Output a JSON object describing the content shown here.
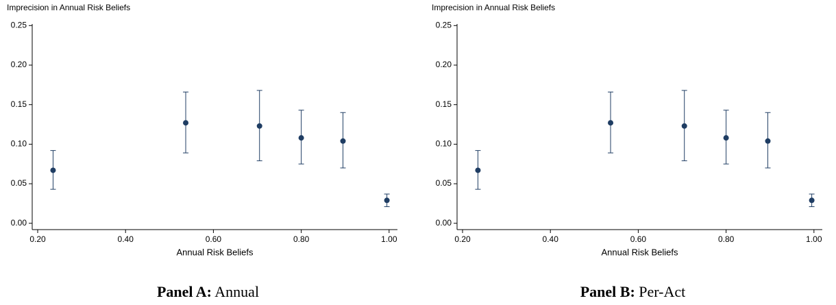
{
  "chart_data": [
    {
      "type": "scatter",
      "panel_label": "Panel A:",
      "panel_name": "Annual",
      "y_label": "Imprecision in Annual Risk Beliefs",
      "x_label": "Annual Risk Beliefs",
      "color": "#1f3d63",
      "x": [
        0.235,
        0.537,
        0.705,
        0.8,
        0.895,
        0.995
      ],
      "values": [
        0.067,
        0.127,
        0.123,
        0.108,
        0.104,
        0.029
      ],
      "lower": [
        0.043,
        0.089,
        0.079,
        0.075,
        0.07,
        0.021
      ],
      "upper": [
        0.092,
        0.166,
        0.168,
        0.143,
        0.14,
        0.037
      ],
      "xlim": [
        0.1875,
        1.019
      ],
      "ylim": [
        -0.008,
        0.252
      ],
      "xticks": [
        {
          "value": 0.2,
          "label": "0.20"
        },
        {
          "value": 0.4,
          "label": "0.40"
        },
        {
          "value": 0.6,
          "label": "0.60"
        },
        {
          "value": 0.8,
          "label": "0.80"
        },
        {
          "value": 1.0,
          "label": "1.00"
        }
      ],
      "yticks": [
        {
          "value": 0,
          "label": "0.00"
        },
        {
          "value": 0.05,
          "label": "0.05"
        },
        {
          "value": 0.1,
          "label": "0.10"
        },
        {
          "value": 0.15,
          "label": "0.15"
        },
        {
          "value": 0.2,
          "label": "0.20"
        },
        {
          "value": 0.25,
          "label": "0.25"
        }
      ],
      "grid": false
    },
    {
      "type": "scatter",
      "panel_label": "Panel B:",
      "panel_name": "Per-Act",
      "y_label": "Imprecision in Annual Risk Beliefs",
      "x_label": "Annual Risk Beliefs",
      "color": "#1f3d63",
      "x": [
        0.235,
        0.537,
        0.705,
        0.8,
        0.895,
        0.995
      ],
      "values": [
        0.067,
        0.127,
        0.123,
        0.108,
        0.104,
        0.029
      ],
      "lower": [
        0.043,
        0.089,
        0.079,
        0.075,
        0.07,
        0.021
      ],
      "upper": [
        0.092,
        0.166,
        0.168,
        0.143,
        0.14,
        0.037
      ],
      "xlim": [
        0.1875,
        1.019
      ],
      "ylim": [
        -0.008,
        0.252
      ],
      "xticks": [
        {
          "value": 0.2,
          "label": "0.20"
        },
        {
          "value": 0.4,
          "label": "0.40"
        },
        {
          "value": 0.6,
          "label": "0.60"
        },
        {
          "value": 0.8,
          "label": "0.80"
        },
        {
          "value": 1.0,
          "label": "1.00"
        }
      ],
      "yticks": [
        {
          "value": 0,
          "label": "0.00"
        },
        {
          "value": 0.05,
          "label": "0.05"
        },
        {
          "value": 0.1,
          "label": "0.10"
        },
        {
          "value": 0.15,
          "label": "0.15"
        },
        {
          "value": 0.2,
          "label": "0.20"
        },
        {
          "value": 0.25,
          "label": "0.25"
        }
      ],
      "grid": false
    }
  ]
}
